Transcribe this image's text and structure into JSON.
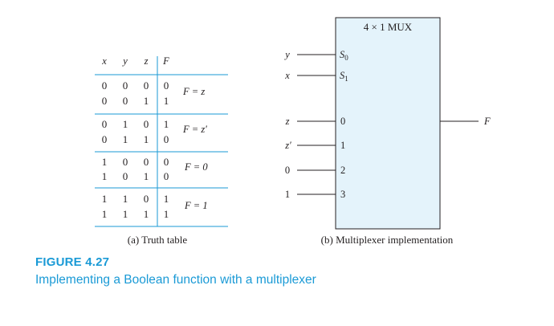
{
  "truth_table": {
    "headers": [
      "x",
      "y",
      "z",
      "F"
    ],
    "groups": [
      {
        "rows": [
          [
            "0",
            "0",
            "0",
            "0"
          ],
          [
            "0",
            "0",
            "1",
            "1"
          ]
        ],
        "expr": "F = z"
      },
      {
        "rows": [
          [
            "0",
            "1",
            "0",
            "1"
          ],
          [
            "0",
            "1",
            "1",
            "0"
          ]
        ],
        "expr": "F = z′"
      },
      {
        "rows": [
          [
            "1",
            "0",
            "0",
            "0"
          ],
          [
            "1",
            "0",
            "1",
            "0"
          ]
        ],
        "expr": "F = 0"
      },
      {
        "rows": [
          [
            "1",
            "1",
            "0",
            "1"
          ],
          [
            "1",
            "1",
            "1",
            "1"
          ]
        ],
        "expr": "F = 1"
      }
    ],
    "caption": "(a) Truth table"
  },
  "mux": {
    "title": "4 × 1 MUX",
    "select_lines": [
      {
        "input": "y",
        "pin": "S",
        "sub": "0"
      },
      {
        "input": "x",
        "pin": "S",
        "sub": "1"
      }
    ],
    "data_lines": [
      {
        "input": "z",
        "pin": "0"
      },
      {
        "input": "z′",
        "pin": "1"
      },
      {
        "input": "0",
        "pin": "2"
      },
      {
        "input": "1",
        "pin": "3"
      }
    ],
    "output": "F",
    "caption": "(b) Multiplexer implementation"
  },
  "figure": {
    "label": "FIGURE 4.27",
    "caption": "Implementing a Boolean function with a multiplexer"
  },
  "colors": {
    "rule": "#1a9ad6",
    "mux_fill": "#e4f3fb",
    "accent": "#1a9ad6"
  }
}
